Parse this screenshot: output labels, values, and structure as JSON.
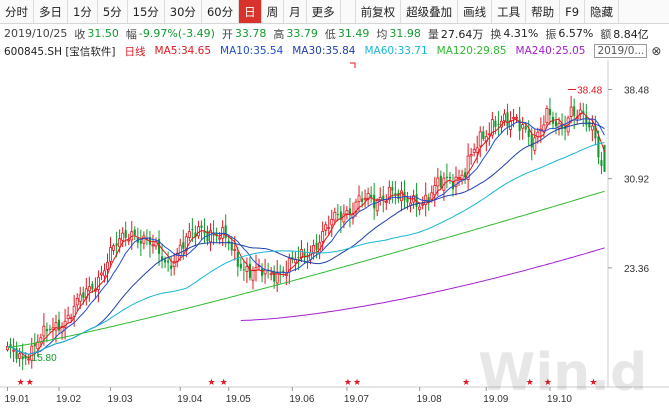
{
  "toolbar": {
    "items": [
      {
        "label": "分时",
        "active": false
      },
      {
        "label": "多日",
        "active": false
      },
      {
        "label": "1分",
        "active": false
      },
      {
        "label": "5分",
        "active": false
      },
      {
        "label": "15分",
        "active": false
      },
      {
        "label": "30分",
        "active": false
      },
      {
        "label": "60分",
        "active": false
      },
      {
        "label": "日",
        "active": true
      },
      {
        "label": "周",
        "active": false
      },
      {
        "label": "月",
        "active": false
      },
      {
        "label": "更多",
        "active": false
      }
    ],
    "right_items": [
      "前复权",
      "超级叠加",
      "画线",
      "工具",
      "帮助",
      "F9",
      "隐藏"
    ]
  },
  "info": {
    "date": "2019/10/25",
    "close_label": "收",
    "close": "31.50",
    "change_label": "幅",
    "change": "-9.97%(-3.49)",
    "open_label": "开",
    "open": "33.78",
    "high_label": "高",
    "high": "33.79",
    "low_label": "低",
    "low": "31.49",
    "avg_label": "均",
    "avg": "31.98",
    "volume_label": "量",
    "volume": "27.64万",
    "turnover_label": "换",
    "turnover": "4.31%",
    "amplitude_label": "振",
    "amplitude": "6.57%",
    "amount_label": "额",
    "amount": "8.84亿"
  },
  "ma_bar": {
    "stock": "600845.SH [宝信软件]",
    "period": "日线",
    "ma5": "MA5:34.65",
    "ma10": "MA10:35.54",
    "ma30": "MA30:35.84",
    "ma60": "MA60:33.71",
    "ma120": "MA120:29.85",
    "ma240": "MA240:25.05",
    "date_box": "2019/0...",
    "close_icon": "close-icon"
  },
  "colors": {
    "up": "#e0171f",
    "down": "#119b2f",
    "ma5": "#e0171f",
    "ma10": "#1f4fd1",
    "ma30": "#1f4fd1",
    "ma60": "#18b6d6",
    "ma120": "#2fb92f",
    "ma240": "#a31fcf",
    "active_tab": "#d8322b"
  },
  "chart_data": {
    "type": "candlestick",
    "y_ticks": [
      "38.48",
      "30.92",
      "23.36"
    ],
    "y_tick_values": [
      38.48,
      30.92,
      23.36
    ],
    "ylim": [
      14.7,
      40.3
    ],
    "x_ticks": [
      "19.01",
      "19.02",
      "19.03",
      "19.04",
      "19.05",
      "19.06",
      "19.07",
      "19.08",
      "19.09",
      "19.10"
    ],
    "x_tick_index": [
      0,
      17,
      34,
      57,
      73,
      94,
      112,
      136,
      158,
      179
    ],
    "n_bars": 198,
    "annotations": [
      {
        "text": "15.80",
        "bar": 5,
        "value": 15.8,
        "kind": "low"
      },
      {
        "text": "38.48",
        "bar": 185,
        "value": 38.48,
        "kind": "high"
      }
    ],
    "markers": [
      4,
      7,
      67,
      71,
      112,
      115,
      151,
      172,
      178,
      193
    ],
    "price_anchors": [
      [
        0,
        16.2
      ],
      [
        5,
        15.8
      ],
      [
        12,
        17.6
      ],
      [
        20,
        19.3
      ],
      [
        28,
        21.8
      ],
      [
        34,
        24.5
      ],
      [
        41,
        26.6
      ],
      [
        47,
        25.2
      ],
      [
        53,
        23.8
      ],
      [
        58,
        25.2
      ],
      [
        64,
        26.9
      ],
      [
        72,
        25.6
      ],
      [
        76,
        24.1
      ],
      [
        80,
        23.1
      ],
      [
        85,
        22.7
      ],
      [
        92,
        23.4
      ],
      [
        98,
        24.3
      ],
      [
        104,
        26.3
      ],
      [
        110,
        27.8
      ],
      [
        116,
        29.2
      ],
      [
        121,
        28.6
      ],
      [
        126,
        30.3
      ],
      [
        131,
        28.6
      ],
      [
        138,
        29.4
      ],
      [
        145,
        30.6
      ],
      [
        151,
        31.8
      ],
      [
        156,
        33.8
      ],
      [
        161,
        36.3
      ],
      [
        166,
        35.3
      ],
      [
        170,
        35.5
      ],
      [
        174,
        34.4
      ],
      [
        178,
        35.8
      ],
      [
        182,
        35.3
      ],
      [
        186,
        36.9
      ],
      [
        190,
        35.6
      ],
      [
        194,
        34.6
      ],
      [
        197,
        31.5
      ]
    ],
    "last_candle": {
      "open": 33.78,
      "high": 33.79,
      "low": 31.49,
      "close": 31.5
    }
  }
}
